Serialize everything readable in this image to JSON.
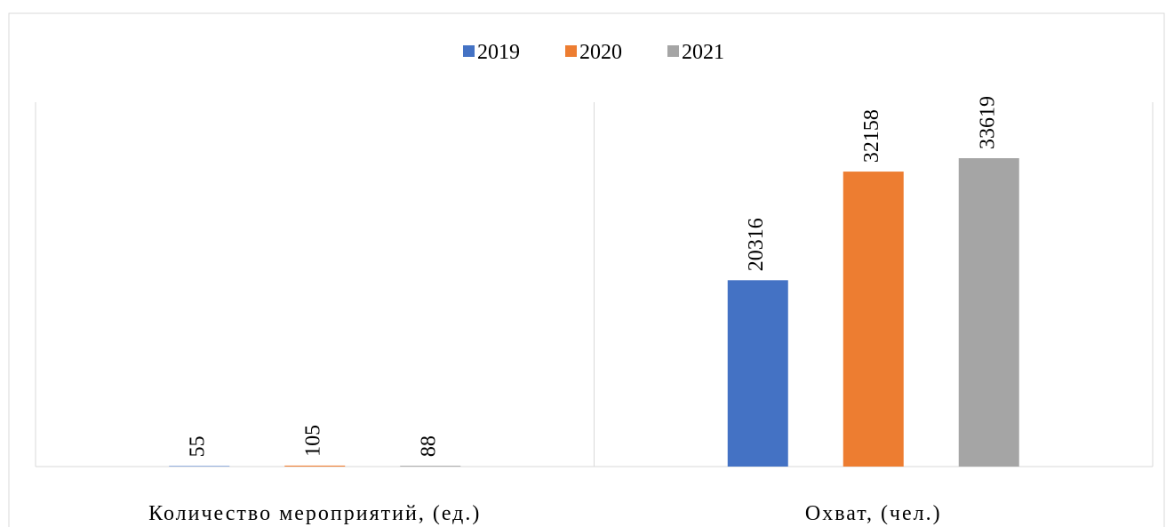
{
  "chart_data": {
    "type": "bar",
    "categories": [
      "Количество мероприятий, (ед.)",
      "Охват, (чел.)"
    ],
    "series": [
      {
        "name": "2019",
        "color": "#4472c4",
        "values": [
          55,
          20316
        ]
      },
      {
        "name": "2020",
        "color": "#ed7d31",
        "values": [
          105,
          32158
        ]
      },
      {
        "name": "2021",
        "color": "#a5a5a5",
        "values": [
          88,
          33619
        ]
      }
    ]
  }
}
